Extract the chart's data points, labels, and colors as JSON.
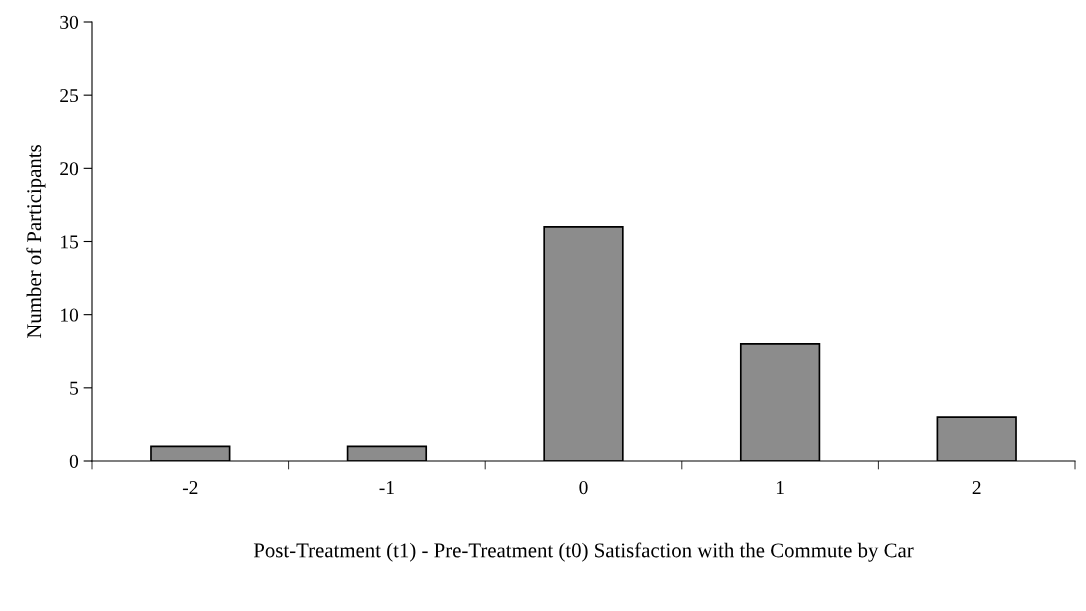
{
  "chart_data": {
    "type": "bar",
    "xlabel": "Post-Treatment (t1) - Pre-Treatment (t0) Satisfaction with the Commute by Car",
    "ylabel": "Number of Participants",
    "categories": [
      "-2",
      "-1",
      "0",
      "1",
      "2"
    ],
    "values": [
      1,
      1,
      16,
      8,
      3
    ],
    "color": "#8c8c8c",
    "ylim": [
      0,
      30
    ],
    "yticks": [
      0,
      5,
      10,
      15,
      20,
      25,
      30
    ],
    "grid": false,
    "legend": false
  }
}
